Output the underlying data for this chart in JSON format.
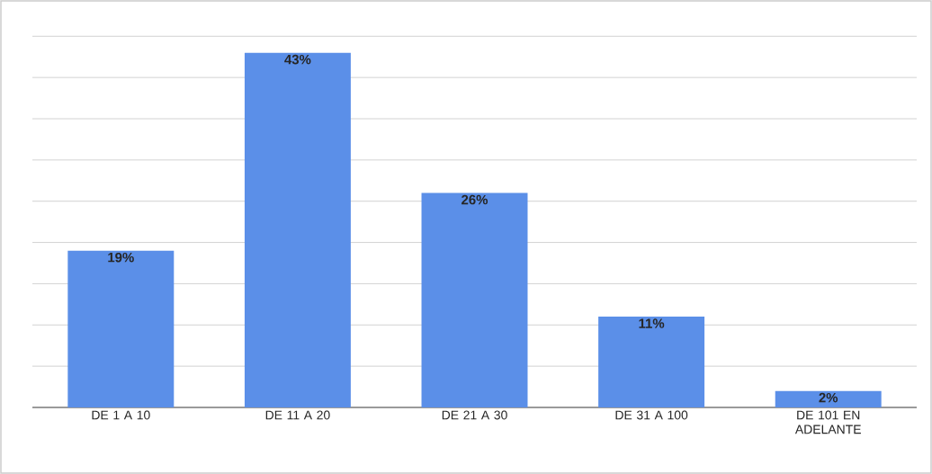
{
  "chart_data": {
    "type": "bar",
    "categories": [
      "DE 1 A 10",
      "DE 11 A 20",
      "DE 21 A 30",
      "DE 31 A 100",
      "DE 101 EN ADELANTE"
    ],
    "values": [
      19,
      43,
      26,
      11,
      2
    ],
    "value_labels": [
      "19%",
      "43%",
      "26%",
      "11%",
      "2%"
    ],
    "color": "#5b8fe8",
    "grid": "y",
    "tick_labels": "x"
  }
}
